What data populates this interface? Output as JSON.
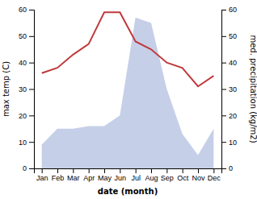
{
  "chart_data": {
    "type": "line",
    "categories": [
      "Jan",
      "Feb",
      "Mar",
      "Apr",
      "May",
      "Jun",
      "Jul",
      "Aug",
      "Sep",
      "Oct",
      "Nov",
      "Dec"
    ],
    "xlabel": "date (month)",
    "ylabel": "max temp (C)",
    "y2label": "med. precipitation (kg/m2)",
    "series": [
      {
        "type": "area",
        "axis": "y2",
        "color": "#c5cfe8",
        "values": [
          9,
          15,
          15,
          16,
          16,
          20,
          57,
          55,
          30,
          13,
          5,
          15
        ]
      },
      {
        "type": "line",
        "color": "#c0393b",
        "values": [
          36,
          38,
          43,
          47,
          59,
          59,
          48,
          45,
          40,
          38,
          31,
          35
        ]
      }
    ],
    "ylim": [
      0,
      60
    ],
    "yticks": [
      0,
      10,
      20,
      30,
      40,
      50,
      60
    ],
    "y2lim": [
      0,
      60
    ],
    "y2ticks": [
      0,
      10,
      20,
      30,
      40,
      50,
      60
    ]
  }
}
